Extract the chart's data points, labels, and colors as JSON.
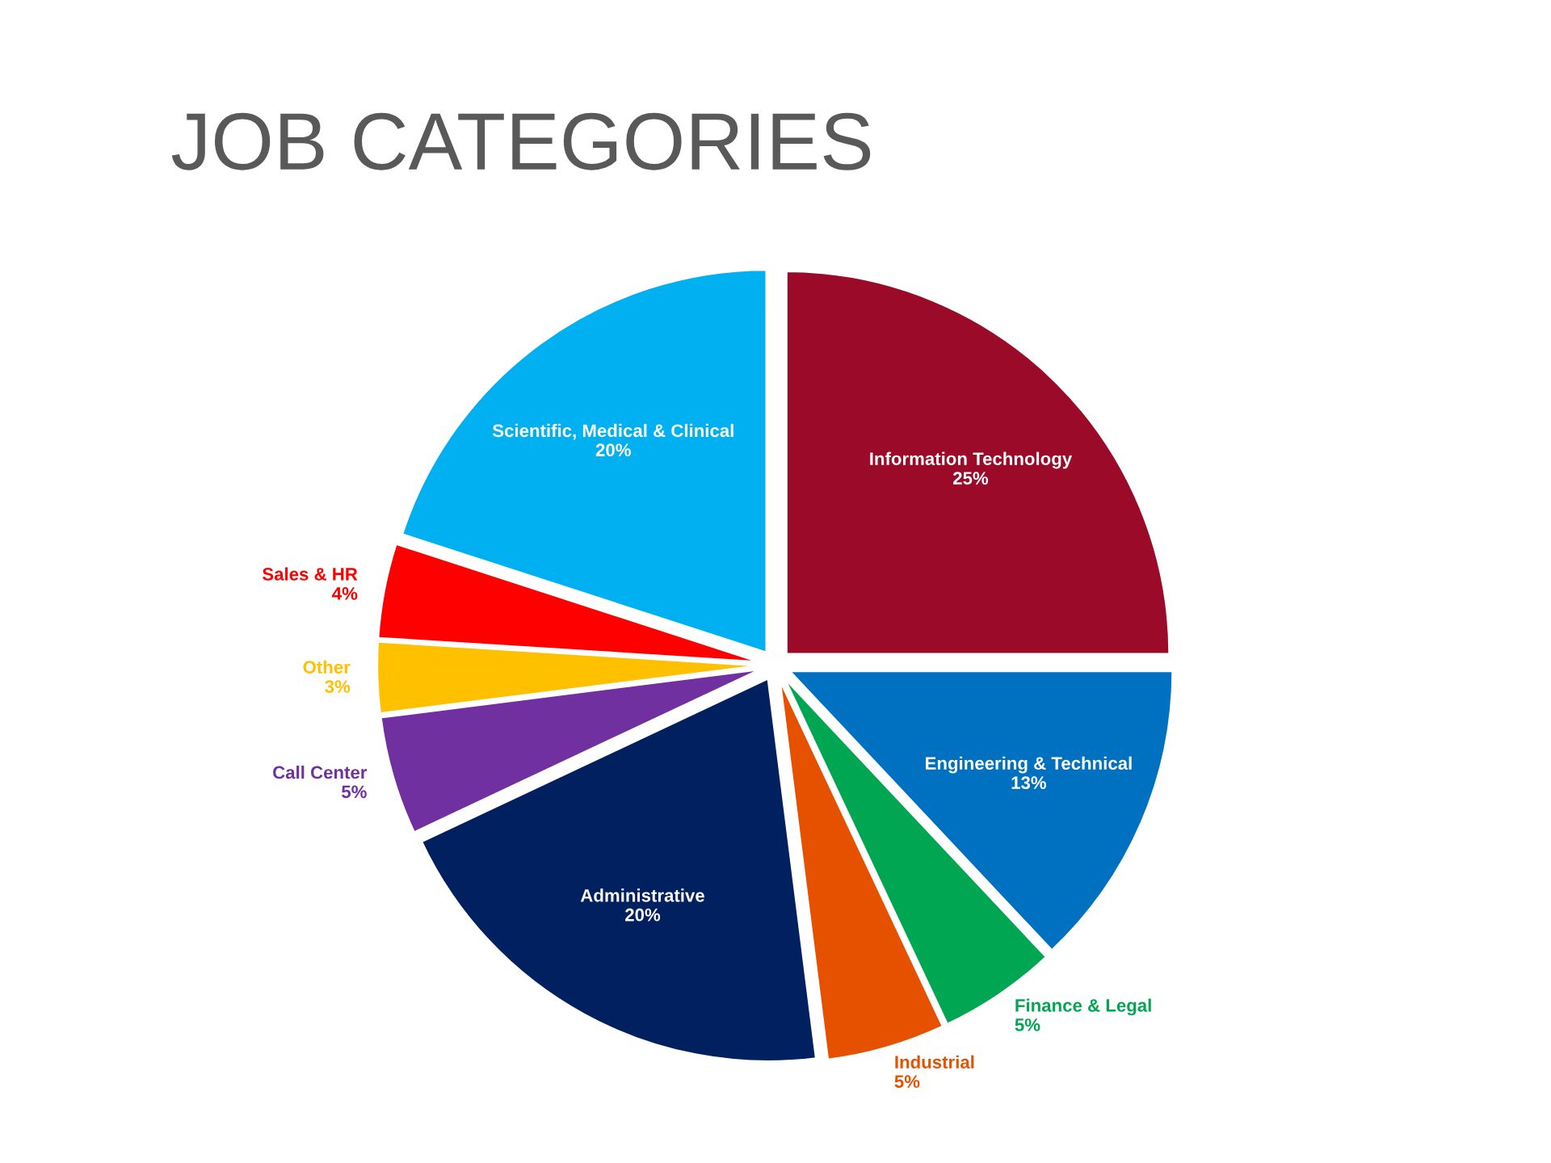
{
  "chart_data": {
    "type": "pie",
    "title": "JOB CATEGORIES",
    "categories": [
      "Information Technology",
      "Engineering & Technical",
      "Finance & Legal",
      "Industrial",
      "Administrative",
      "Call Center",
      "Other",
      "Sales & HR",
      "Scientific, Medical & Clinical"
    ],
    "values": [
      25,
      13,
      5,
      5,
      20,
      5,
      3,
      4,
      20
    ],
    "value_labels": [
      "25%",
      "13%",
      "5%",
      "5%",
      "20%",
      "5%",
      "3%",
      "4%",
      "20%"
    ],
    "colors": [
      "#9b0a28",
      "#0070c0",
      "#00a651",
      "#e65100",
      "#002060",
      "#7030a0",
      "#ffc000",
      "#ff0000",
      "#00b0f0"
    ],
    "legend": false
  }
}
